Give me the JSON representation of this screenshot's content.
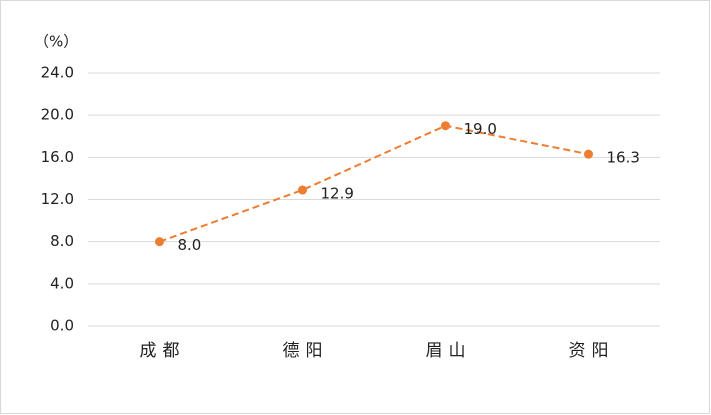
{
  "chart_data": {
    "type": "line",
    "y_axis_label": "（%）",
    "categories": [
      "成都",
      "德阳",
      "眉山",
      "资阳"
    ],
    "values": [
      8.0,
      12.9,
      19.0,
      16.3
    ],
    "value_labels": [
      "8.0",
      "12.9",
      "19.0",
      "16.3"
    ],
    "color": "#ED7D31",
    "line_style": "dashed",
    "markers": true,
    "ylim": [
      0,
      24
    ],
    "yticks": [
      {
        "value": 0,
        "label": "0.0"
      },
      {
        "value": 4,
        "label": "4.0"
      },
      {
        "value": 8,
        "label": "8.0"
      },
      {
        "value": 12,
        "label": "12.0"
      },
      {
        "value": 16,
        "label": "16.0"
      },
      {
        "value": 20,
        "label": "20.0"
      },
      {
        "value": 24,
        "label": "24.0"
      }
    ],
    "grid": true
  }
}
